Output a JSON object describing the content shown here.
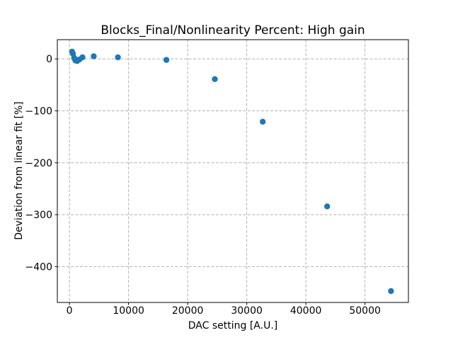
{
  "figure": {
    "background": "#ffffff",
    "spine_color": "#000000",
    "text_color": "#000000"
  },
  "chart_data": {
    "type": "scatter",
    "title": "Blocks_Final/Nonlinearity Percent: High gain",
    "xlabel": "DAC setting [A.U.]",
    "ylabel": "Deviation from linear fit [%]",
    "xlim": [
      -2050,
      57350
    ],
    "ylim": [
      -469,
      37
    ],
    "xticks": [
      0,
      10000,
      20000,
      30000,
      40000,
      50000
    ],
    "xtick_labels": [
      "0",
      "10000",
      "20000",
      "30000",
      "40000",
      "50000"
    ],
    "yticks": [
      0,
      -100,
      -200,
      -300,
      -400
    ],
    "ytick_labels": [
      "0",
      "−100",
      "−200",
      "−300",
      "−400"
    ],
    "grid": true,
    "grid_style": "dashed",
    "grid_color": "#b0b0b0",
    "legend": null,
    "marker_color": "#1f77b4",
    "marker_radius_px": 4.2,
    "points": [
      {
        "x": 450,
        "y": 14
      },
      {
        "x": 600,
        "y": 10
      },
      {
        "x": 800,
        "y": 2
      },
      {
        "x": 1000,
        "y": -3
      },
      {
        "x": 1300,
        "y": -4
      },
      {
        "x": 1700,
        "y": -1
      },
      {
        "x": 2200,
        "y": 3
      },
      {
        "x": 4100,
        "y": 5
      },
      {
        "x": 8200,
        "y": 3
      },
      {
        "x": 16400,
        "y": -2
      },
      {
        "x": 24600,
        "y": -39
      },
      {
        "x": 32700,
        "y": -121
      },
      {
        "x": 43600,
        "y": -284
      },
      {
        "x": 54400,
        "y": -447
      }
    ]
  }
}
